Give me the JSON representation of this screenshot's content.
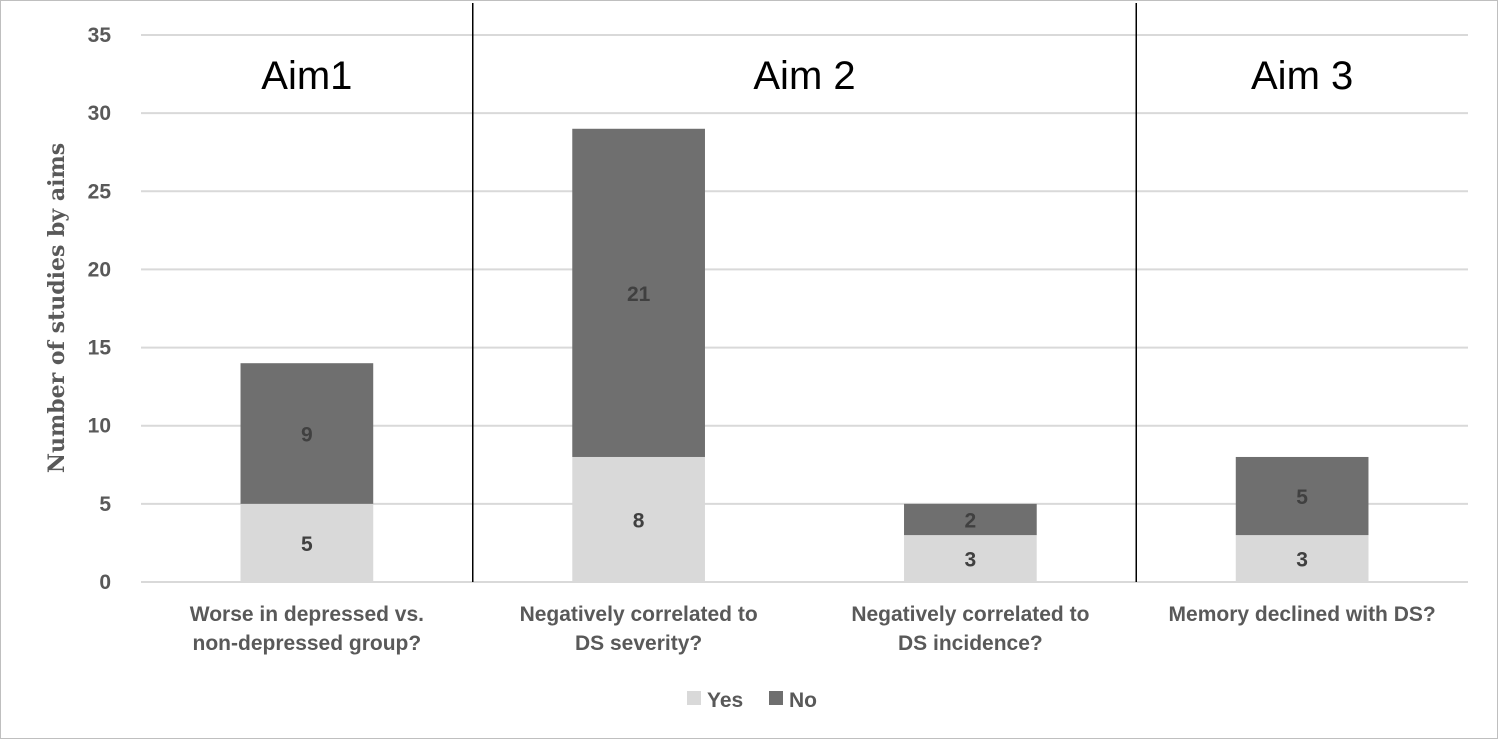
{
  "chart_data": {
    "type": "bar",
    "stacked": true,
    "ylabel": "Number of studies by aims",
    "xlabel": "",
    "ylim": [
      0,
      35
    ],
    "yticks": [
      0,
      5,
      10,
      15,
      20,
      25,
      30,
      35
    ],
    "grid": true,
    "legend_position": "bottom",
    "categories": [
      [
        "Worse in depressed vs.",
        "non-depressed group?"
      ],
      [
        "Negatively correlated to",
        "DS severity?"
      ],
      [
        "Negatively correlated to",
        "DS incidence?"
      ],
      [
        "Memory declined with DS?"
      ]
    ],
    "series": [
      {
        "name": "Yes",
        "values": [
          5,
          8,
          3,
          3
        ],
        "color": "#d9d9d9"
      },
      {
        "name": "No",
        "values": [
          9,
          21,
          2,
          5
        ],
        "color": "#6f6f6f"
      }
    ],
    "aims": [
      {
        "label": "Aim1",
        "from": 0,
        "to": 0
      },
      {
        "label": "Aim 2",
        "from": 1,
        "to": 2
      },
      {
        "label": "Aim 3",
        "from": 3,
        "to": 3
      }
    ],
    "gridline_color": "#d9d9d9",
    "divider_color": "#000000"
  }
}
